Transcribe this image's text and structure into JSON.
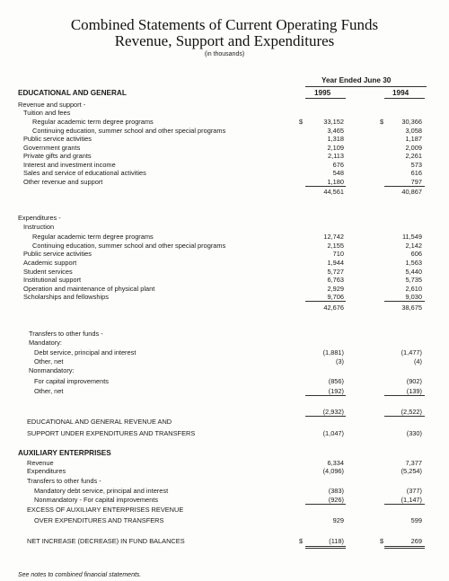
{
  "header": {
    "title_line1": "Combined Statements of Current Operating Funds",
    "title_line2": "Revenue, Support and Expenditures",
    "units": "(in thousands)"
  },
  "columns": {
    "heading": "Year Ended June 30",
    "years": [
      "1995",
      "1994"
    ]
  },
  "currency_symbol": "$",
  "rows": [
    {
      "label": "EDUCATIONAL AND GENERAL"
    },
    {
      "label": "Revenue and support -"
    },
    {
      "label": "Tuition and fees"
    },
    {
      "label": "Regular academic term degree programs",
      "values": [
        "33,152",
        "30,366"
      ]
    },
    {
      "label": "Continuing education, summer school and other special programs",
      "values": [
        "3,465",
        "3,058"
      ]
    },
    {
      "label": "Public service activities",
      "values": [
        "1,318",
        "1,187"
      ]
    },
    {
      "label": "Government grants",
      "values": [
        "2,109",
        "2,009"
      ]
    },
    {
      "label": "Private gifts and grants",
      "values": [
        "2,113",
        "2,261"
      ]
    },
    {
      "label": "Interest and investment income",
      "values": [
        "676",
        "573"
      ]
    },
    {
      "label": "Sales and service of educational activities",
      "values": [
        "548",
        "616"
      ]
    },
    {
      "label": "Other revenue and support",
      "values": [
        "1,180",
        "797"
      ]
    },
    {
      "values": [
        "44,561",
        "40,867"
      ]
    },
    {
      "label": "Expenditures -"
    },
    {
      "label": "Instruction"
    },
    {
      "label": "Regular academic term degree programs",
      "values": [
        "12,742",
        "11,549"
      ]
    },
    {
      "label": "Continuing education, summer school and other special programs",
      "values": [
        "2,155",
        "2,142"
      ]
    },
    {
      "label": "Public service activities",
      "values": [
        "710",
        "606"
      ]
    },
    {
      "label": "Academic support",
      "values": [
        "1,944",
        "1,563"
      ]
    },
    {
      "label": "Student services",
      "values": [
        "5,727",
        "5,440"
      ]
    },
    {
      "label": "Institutional support",
      "values": [
        "6,763",
        "5,735"
      ]
    },
    {
      "label": "Operation and maintenance of physical plant",
      "values": [
        "2,929",
        "2,610"
      ]
    },
    {
      "label": "Scholarships and fellowships",
      "values": [
        "9,706",
        "9,030"
      ]
    },
    {
      "values": [
        "42,676",
        "38,675"
      ]
    },
    {
      "label": "Transfers to other funds -"
    },
    {
      "label": "Mandatory:"
    },
    {
      "label": "Debt service, principal and interest",
      "values": [
        "(1,881)",
        "(1,477)"
      ]
    },
    {
      "label": "Other, net",
      "values": [
        "(3)",
        "(4)"
      ]
    },
    {
      "label": "Nonmandatory:"
    },
    {
      "label": "For capital improvements",
      "values": [
        "(856)",
        "(902)"
      ]
    },
    {
      "label": "Other, net",
      "values": [
        "(192)",
        "(139)"
      ]
    },
    {
      "values": [
        "(2,932)",
        "(2,522)"
      ]
    },
    {
      "label": "EDUCATIONAL AND GENERAL REVENUE AND"
    },
    {
      "label": "SUPPORT UNDER EXPENDITURES AND TRANSFERS",
      "values": [
        "(1,047)",
        "(330)"
      ]
    },
    {
      "label": "AUXILIARY ENTERPRISES"
    },
    {
      "label": "Revenue",
      "values": [
        "6,334",
        "7,377"
      ]
    },
    {
      "label": "Expenditures",
      "values": [
        "(4,096)",
        "(5,254)"
      ]
    },
    {
      "label": "Transfers to other funds -"
    },
    {
      "label": "Mandatory debt service, principal and interest",
      "values": [
        "(383)",
        "(377)"
      ]
    },
    {
      "label": "Nonmandatory - For capital improvements",
      "values": [
        "(926)",
        "(1,147)"
      ]
    },
    {
      "label": "EXCESS OF AUXILIARY ENTERPRISES REVENUE"
    },
    {
      "label": "OVER EXPENDITURES AND TRANSFERS",
      "values": [
        "929",
        "599"
      ]
    },
    {
      "label": "NET INCREASE (DECREASE) IN FUND BALANCES",
      "values": [
        "(118)",
        "269"
      ]
    }
  ],
  "footnote": "See notes to combined financial statements."
}
